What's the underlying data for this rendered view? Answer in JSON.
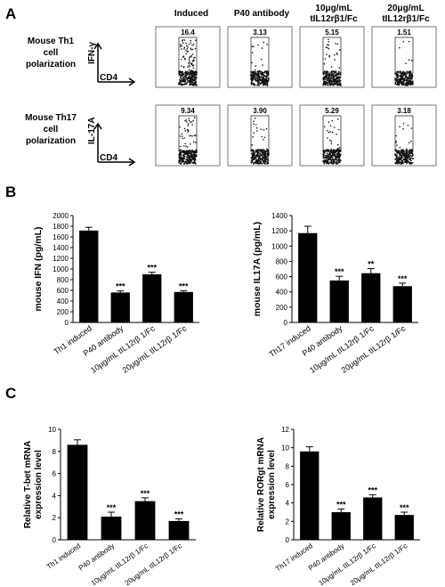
{
  "panels": {
    "a": "A",
    "b": "B",
    "c": "C"
  },
  "flow": {
    "columns": [
      "Induced",
      "P40 antibody",
      "10μg/mL tIL12rβ1/Fc",
      "20μg/mL tIL12rβ1/Fc"
    ],
    "rows": [
      {
        "label": "Mouse Th1 cell polarization",
        "y_axis": "IFN-γ",
        "x_axis": "CD4",
        "values": [
          "16.4",
          "3.13",
          "5.15",
          "1.51"
        ]
      },
      {
        "label": "Mouse Th17 cell polarization",
        "y_axis": "IL-17A",
        "x_axis": "CD4",
        "values": [
          "9.34",
          "3.90",
          "5.29",
          "3.18"
        ]
      }
    ]
  },
  "chart_data": [
    {
      "type": "bar",
      "categories": [
        "Th1 induced",
        "P40 antibody",
        "10μg/mL tIL12rβ 1/Fc",
        "20μg/mL tIL12rβ 1/Fc"
      ],
      "values": [
        1720,
        560,
        900,
        570
      ],
      "errors": [
        60,
        30,
        40,
        25
      ],
      "significance": [
        "",
        "***",
        "***",
        "***"
      ],
      "ylabel": "mouse IFN (pg/mL)",
      "ylim": [
        0,
        2000
      ],
      "yticks": [
        0,
        200,
        400,
        600,
        800,
        1000,
        1200,
        1400,
        1600,
        1800,
        2000
      ]
    },
    {
      "type": "bar",
      "categories": [
        "Th17 induced",
        "P40 antibody",
        "10μg/mL tIL12rβ 1/Fc",
        "20μg/mL tIL12rβ 1/Fc"
      ],
      "values": [
        1170,
        550,
        645,
        475
      ],
      "errors": [
        90,
        55,
        60,
        40
      ],
      "significance": [
        "",
        "***",
        "**",
        "***"
      ],
      "ylabel": "mouse IL17A (pg/mL)",
      "ylim": [
        0,
        1400
      ],
      "yticks": [
        0,
        200,
        400,
        600,
        800,
        1000,
        1200,
        1400
      ]
    },
    {
      "type": "bar",
      "categories": [
        "Th1 induced",
        "P40 antibody",
        "10μg/mL tIL12rβ 1/Fc",
        "20μg/mL tIL12rβ 1/Fc"
      ],
      "values": [
        8.6,
        2.1,
        3.5,
        1.7
      ],
      "errors": [
        0.45,
        0.4,
        0.3,
        0.2
      ],
      "significance": [
        "",
        "***",
        "***",
        "***"
      ],
      "ylabel": "Relative T-bet mRNA expression level",
      "ylim": [
        0,
        10
      ],
      "yticks": [
        0,
        2,
        4,
        6,
        8,
        10
      ]
    },
    {
      "type": "bar",
      "categories": [
        "Th17 induced",
        "P40 antibody",
        "10μg/mL tIL12rβ 1/Fc",
        "20μg/mL tIL12rβ 1/Fc"
      ],
      "values": [
        9.6,
        3.0,
        4.6,
        2.7
      ],
      "errors": [
        0.5,
        0.35,
        0.3,
        0.3
      ],
      "significance": [
        "",
        "***",
        "***",
        "***"
      ],
      "ylabel": "Relative RORgt mRNA expression level",
      "ylim": [
        0,
        12
      ],
      "yticks": [
        0,
        2,
        4,
        6,
        8,
        10,
        12
      ]
    }
  ]
}
